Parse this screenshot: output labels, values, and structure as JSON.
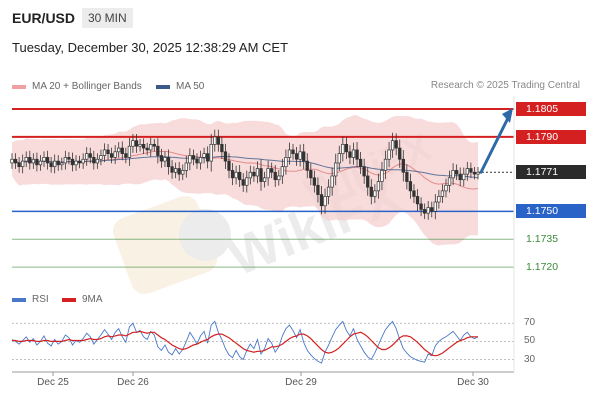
{
  "header": {
    "pair": "EUR/USD",
    "timeframe": "30 MIN",
    "datetime": "Tuesday, December 30, 2025 12:38:29 AM CET"
  },
  "legend": {
    "bollinger": "MA 20 + Bollinger Bands",
    "ma50": "MA 50",
    "research": "Research © 2025 Trading Central",
    "rsi": "RSI",
    "ma9": "9MA"
  },
  "colors": {
    "resistance": "#d42020",
    "support": "#2a63c7",
    "target": "#3b8a3b",
    "bollinger_fill": "#f6d0d0",
    "ma50": "#3a5a8a",
    "rsi": "#4a78c8",
    "rsi_ma": "#d42020"
  },
  "chart_data": [
    {
      "type": "candlestick",
      "x_tick_labels": [
        "Dec 25",
        "Dec 26",
        "Dec 29",
        "Dec 30"
      ],
      "ylim": [
        1.1712,
        1.1812
      ],
      "levels": [
        {
          "label": "1.1805",
          "value": 1.1805,
          "kind": "resistance"
        },
        {
          "label": "1.1790",
          "value": 1.179,
          "kind": "resistance"
        },
        {
          "label": "1.1771",
          "value": 1.1771,
          "kind": "current"
        },
        {
          "label": "1.1750",
          "value": 1.175,
          "kind": "support"
        },
        {
          "label": "1.1735",
          "value": 1.1735,
          "kind": "target"
        },
        {
          "label": "1.1720",
          "value": 1.172,
          "kind": "target"
        }
      ],
      "close": [
        1.1778,
        1.1776,
        1.1774,
        1.1777,
        1.1779,
        1.1776,
        1.1778,
        1.1775,
        1.1777,
        1.1779,
        1.1776,
        1.1774,
        1.1777,
        1.1775,
        1.1776,
        1.1779,
        1.1778,
        1.1775,
        1.1777,
        1.1776,
        1.1778,
        1.1781,
        1.1779,
        1.1776,
        1.1778,
        1.178,
        1.1783,
        1.1781,
        1.1779,
        1.1782,
        1.1784,
        1.1781,
        1.1779,
        1.1785,
        1.1788,
        1.1785,
        1.1786,
        1.1784,
        1.1783,
        1.1786,
        1.1785,
        1.178,
        1.1777,
        1.1779,
        1.1774,
        1.1771,
        1.1773,
        1.177,
        1.1772,
        1.1776,
        1.178,
        1.1778,
        1.1776,
        1.1779,
        1.1781,
        1.1777,
        1.1786,
        1.179,
        1.1786,
        1.1782,
        1.1777,
        1.1772,
        1.1768,
        1.1771,
        1.1767,
        1.1764,
        1.1768,
        1.1771,
        1.1769,
        1.1773,
        1.1766,
        1.1768,
        1.1773,
        1.1771,
        1.1767,
        1.1769,
        1.1774,
        1.1779,
        1.1783,
        1.1781,
        1.1778,
        1.1782,
        1.1777,
        1.1772,
        1.1768,
        1.1764,
        1.1759,
        1.1753,
        1.1758,
        1.1763,
        1.1769,
        1.1776,
        1.1781,
        1.1786,
        1.1782,
        1.1779,
        1.1783,
        1.1778,
        1.1774,
        1.1769,
        1.1763,
        1.1758,
        1.1761,
        1.1766,
        1.1772,
        1.1778,
        1.1783,
        1.1788,
        1.1784,
        1.1778,
        1.1771,
        1.1766,
        1.1761,
        1.1758,
        1.1754,
        1.1751,
        1.1749,
        1.1752,
        1.175,
        1.1755,
        1.1758,
        1.1761,
        1.1764,
        1.1768,
        1.1772,
        1.177,
        1.1767,
        1.177,
        1.1773,
        1.1771,
        1.177,
        1.1771
      ],
      "projection": {
        "from": 1.1771,
        "to": 1.1805
      }
    },
    {
      "type": "line",
      "ylim": [
        25,
        78
      ],
      "tick_labels": [
        "70",
        "50",
        "30"
      ],
      "ticks": [
        70,
        50,
        30
      ],
      "series": [
        {
          "name": "RSI",
          "values": [
            52,
            50,
            47,
            51,
            55,
            49,
            53,
            46,
            50,
            56,
            48,
            45,
            52,
            47,
            50,
            57,
            54,
            46,
            51,
            49,
            53,
            59,
            55,
            47,
            52,
            57,
            63,
            58,
            52,
            60,
            64,
            55,
            49,
            66,
            70,
            60,
            62,
            55,
            52,
            61,
            57,
            44,
            40,
            46,
            38,
            35,
            42,
            36,
            41,
            50,
            60,
            54,
            47,
            56,
            61,
            48,
            68,
            72,
            60,
            52,
            42,
            35,
            32,
            40,
            33,
            30,
            40,
            47,
            42,
            52,
            36,
            42,
            53,
            48,
            38,
            44,
            56,
            64,
            68,
            62,
            54,
            63,
            49,
            40,
            35,
            31,
            28,
            26,
            38,
            46,
            55,
            63,
            68,
            72,
            62,
            56,
            64,
            52,
            45,
            38,
            33,
            30,
            37,
            46,
            55,
            63,
            68,
            72,
            64,
            52,
            42,
            37,
            33,
            31,
            29,
            28,
            27,
            36,
            34,
            45,
            50,
            53,
            55,
            58,
            61,
            56,
            51,
            57,
            60,
            55,
            53,
            55
          ]
        },
        {
          "name": "9MA",
          "values": [
            51,
            51,
            50,
            50,
            51,
            51,
            51,
            50,
            50,
            51,
            51,
            50,
            50,
            50,
            50,
            51,
            52,
            51,
            51,
            51,
            51,
            52,
            53,
            52,
            52,
            53,
            55,
            56,
            55,
            56,
            57,
            57,
            56,
            58,
            60,
            60,
            61,
            60,
            59,
            60,
            60,
            57,
            54,
            52,
            49,
            46,
            44,
            42,
            41,
            42,
            44,
            46,
            47,
            49,
            51,
            52,
            55,
            57,
            58,
            58,
            56,
            54,
            51,
            48,
            45,
            42,
            40,
            39,
            38,
            39,
            39,
            40,
            42,
            44,
            44,
            45,
            47,
            50,
            53,
            55,
            56,
            58,
            58,
            56,
            53,
            49,
            45,
            41,
            38,
            37,
            38,
            40,
            43,
            47,
            51,
            55,
            58,
            59,
            60,
            58,
            55,
            51,
            47,
            43,
            41,
            41,
            43,
            46,
            50,
            54,
            56,
            56,
            55,
            52,
            49,
            45,
            41,
            38,
            35,
            34,
            35,
            37,
            40,
            43,
            46,
            49,
            51,
            52,
            54,
            55,
            55,
            55
          ]
        }
      ]
    }
  ]
}
